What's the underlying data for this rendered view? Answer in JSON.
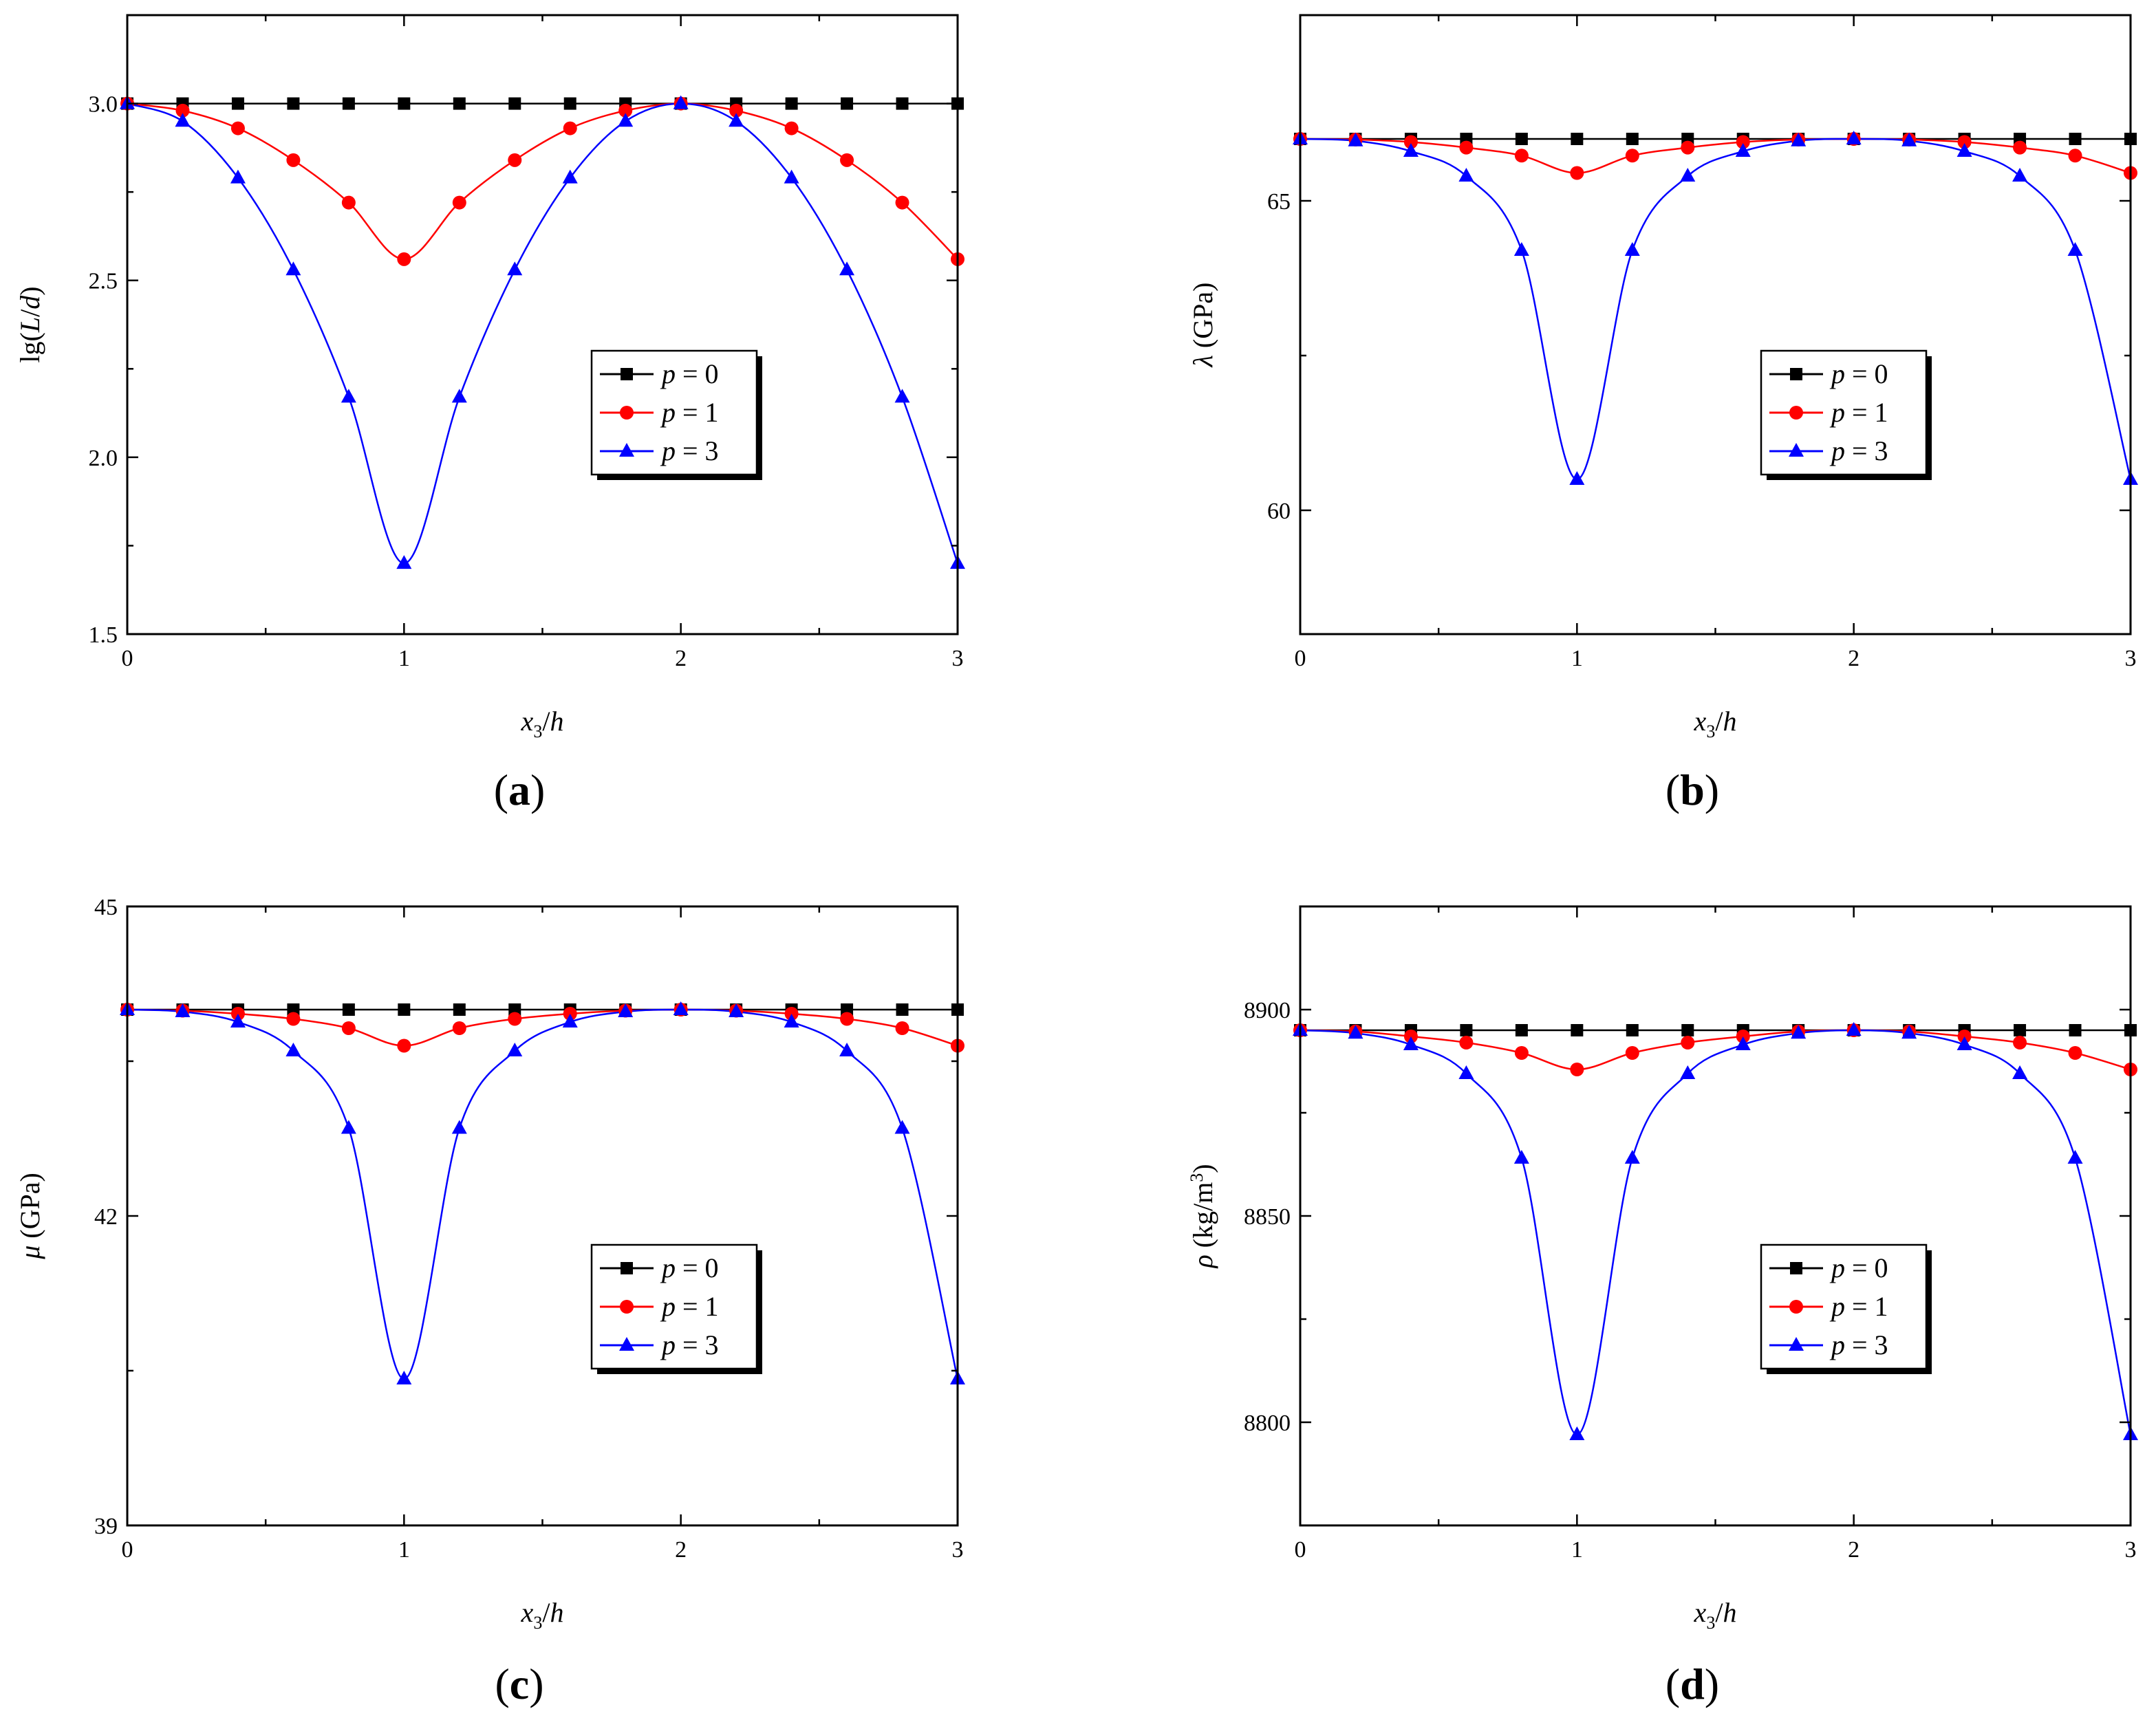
{
  "colors": {
    "p0": "#000000",
    "p1": "#ff0000",
    "p3": "#0000ff"
  },
  "legend_entries": [
    {
      "var": "p",
      "text": " = 0",
      "marker": "square"
    },
    {
      "var": "p",
      "text": " = 1",
      "marker": "circle"
    },
    {
      "var": "p",
      "text": " = 3",
      "marker": "triangle"
    }
  ],
  "chart_data": [
    {
      "type": "line",
      "panel_label": "a",
      "xlabel": {
        "var": "x",
        "sub": "3",
        "rest": "/",
        "var2": "h"
      },
      "ylabel": {
        "pre": "lg(",
        "var": "L",
        "mid": "/",
        "var2": "d",
        "post": ")"
      },
      "xlim": [
        0,
        3
      ],
      "ylim": [
        1.5,
        3.25
      ],
      "xticks": [
        "0",
        "1",
        "2",
        "3"
      ],
      "yticks": [
        "1.5",
        "2.0",
        "2.5",
        "3.0"
      ],
      "ytick_values": [
        1.5,
        2.0,
        2.5,
        3.0
      ],
      "x": [
        0,
        0.2,
        0.4,
        0.6,
        0.8,
        1.0,
        1.2,
        1.4,
        1.6,
        1.8,
        2.0,
        2.2,
        2.4,
        2.6,
        2.8,
        3.0
      ],
      "series": [
        {
          "name": "p = 0",
          "values": [
            3.0,
            3.0,
            3.0,
            3.0,
            3.0,
            3.0,
            3.0,
            3.0,
            3.0,
            3.0,
            3.0,
            3.0,
            3.0,
            3.0,
            3.0,
            3.0
          ]
        },
        {
          "name": "p = 1",
          "values": [
            3.0,
            2.98,
            2.93,
            2.84,
            2.72,
            2.56,
            2.72,
            2.84,
            2.93,
            2.98,
            3.0,
            2.98,
            2.93,
            2.84,
            2.72,
            2.56
          ]
        },
        {
          "name": "p = 3",
          "values": [
            3.0,
            2.95,
            2.79,
            2.53,
            2.17,
            1.7,
            2.17,
            2.53,
            2.79,
            2.95,
            3.0,
            2.95,
            2.79,
            2.53,
            2.17,
            1.7
          ]
        }
      ]
    },
    {
      "type": "line",
      "panel_label": "b",
      "xlabel": {
        "var": "x",
        "sub": "3",
        "rest": "/",
        "var2": "h"
      },
      "ylabel": {
        "pre": "",
        "var": "λ",
        "mid": " (GPa)",
        "var2": "",
        "post": ""
      },
      "xlim": [
        0,
        3
      ],
      "ylim": [
        58,
        68
      ],
      "xticks": [
        "0",
        "1",
        "2",
        "3"
      ],
      "yticks": [
        "60",
        "65"
      ],
      "ytick_values": [
        60,
        65
      ],
      "x": [
        0,
        0.2,
        0.4,
        0.6,
        0.8,
        1.0,
        1.2,
        1.4,
        1.6,
        1.8,
        2.0,
        2.2,
        2.4,
        2.6,
        2.8,
        3.0
      ],
      "series": [
        {
          "name": "p = 0",
          "values": [
            66.0,
            66.0,
            66.0,
            66.0,
            66.0,
            66.0,
            66.0,
            66.0,
            66.0,
            66.0,
            66.0,
            66.0,
            66.0,
            66.0,
            66.0,
            66.0
          ]
        },
        {
          "name": "p = 1",
          "values": [
            66.0,
            65.99,
            65.95,
            65.86,
            65.73,
            65.45,
            65.73,
            65.86,
            65.95,
            65.99,
            66.0,
            65.99,
            65.95,
            65.86,
            65.73,
            65.45
          ]
        },
        {
          "name": "p = 3",
          "values": [
            66.0,
            65.97,
            65.8,
            65.4,
            64.2,
            60.5,
            64.2,
            65.4,
            65.8,
            65.97,
            66.0,
            65.97,
            65.8,
            65.4,
            64.2,
            60.5
          ]
        }
      ]
    },
    {
      "type": "line",
      "panel_label": "c",
      "xlabel": {
        "var": "x",
        "sub": "3",
        "rest": "/",
        "var2": "h"
      },
      "ylabel": {
        "pre": "",
        "var": "μ",
        "mid": " (GPa)",
        "var2": "",
        "post": ""
      },
      "xlim": [
        0,
        3
      ],
      "ylim": [
        39,
        45
      ],
      "xticks": [
        "0",
        "1",
        "2",
        "3"
      ],
      "yticks": [
        "39",
        "42",
        "45"
      ],
      "ytick_values": [
        39,
        42,
        45
      ],
      "x": [
        0,
        0.2,
        0.4,
        0.6,
        0.8,
        1.0,
        1.2,
        1.4,
        1.6,
        1.8,
        2.0,
        2.2,
        2.4,
        2.6,
        2.8,
        3.0
      ],
      "series": [
        {
          "name": "p = 0",
          "values": [
            44.0,
            44.0,
            44.0,
            44.0,
            44.0,
            44.0,
            44.0,
            44.0,
            44.0,
            44.0,
            44.0,
            44.0,
            44.0,
            44.0,
            44.0,
            44.0
          ]
        },
        {
          "name": "p = 1",
          "values": [
            44.0,
            43.99,
            43.96,
            43.91,
            43.82,
            43.65,
            43.82,
            43.91,
            43.96,
            43.99,
            44.0,
            43.99,
            43.96,
            43.91,
            43.82,
            43.65
          ]
        },
        {
          "name": "p = 3",
          "values": [
            44.0,
            43.98,
            43.88,
            43.6,
            42.85,
            40.42,
            42.85,
            43.6,
            43.88,
            43.98,
            44.0,
            43.98,
            43.88,
            43.6,
            42.85,
            40.42
          ]
        }
      ]
    },
    {
      "type": "line",
      "panel_label": "d",
      "xlabel": {
        "var": "x",
        "sub": "3",
        "rest": "/",
        "var2": "h"
      },
      "ylabel": {
        "pre": "",
        "var": "ρ",
        "mid": " (kg/m",
        "var2": "",
        "post": "3",
        "post2": ")"
      },
      "xlim": [
        0,
        3
      ],
      "ylim": [
        8775,
        8925
      ],
      "xticks": [
        "0",
        "1",
        "2",
        "3"
      ],
      "yticks": [
        "8800",
        "8850",
        "8900"
      ],
      "ytick_values": [
        8800,
        8850,
        8900
      ],
      "x": [
        0,
        0.2,
        0.4,
        0.6,
        0.8,
        1.0,
        1.2,
        1.4,
        1.6,
        1.8,
        2.0,
        2.2,
        2.4,
        2.6,
        2.8,
        3.0
      ],
      "series": [
        {
          "name": "p = 0",
          "values": [
            8895,
            8895,
            8895,
            8895,
            8895,
            8895,
            8895,
            8895,
            8895,
            8895,
            8895,
            8895,
            8895,
            8895,
            8895,
            8895
          ]
        },
        {
          "name": "p = 1",
          "values": [
            8895,
            8894.7,
            8893.5,
            8892,
            8889.5,
            8885.5,
            8889.5,
            8892,
            8893.5,
            8894.7,
            8895,
            8894.7,
            8893.5,
            8892,
            8889.5,
            8885.5
          ]
        },
        {
          "name": "p = 3",
          "values": [
            8895,
            8894.3,
            8891.5,
            8884.5,
            8864,
            8797,
            8864,
            8884.5,
            8891.5,
            8894.3,
            8895,
            8894.3,
            8891.5,
            8884.5,
            8864,
            8797
          ]
        }
      ]
    }
  ]
}
